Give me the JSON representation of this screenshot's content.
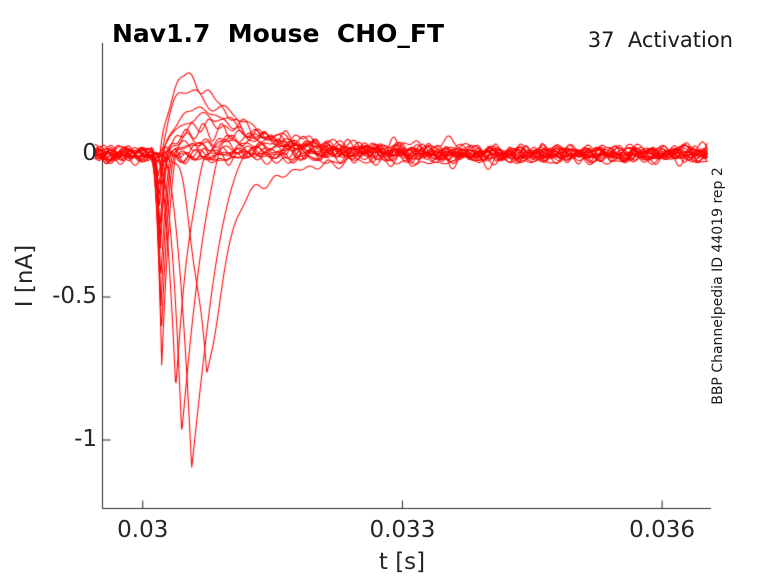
{
  "figure": {
    "title": "Nav1.7  Mouse  CHO_FT",
    "annotation": "37  Activation",
    "side_label": "BBP Channelpedia ID 44019 rep 2",
    "xlabel": "t [s]",
    "ylabel": "I [nA]"
  },
  "colors": {
    "trace": "#ff0000",
    "axis": "#262626",
    "title_text": "#000000",
    "background": "#ffffff"
  },
  "chart_data": {
    "type": "line",
    "title": "Nav1.7  Mouse  CHO_FT",
    "subtitle": "37  Activation",
    "watermark": "BBP Channelpedia ID 44019 rep 2",
    "xlabel": "t [s]",
    "ylabel": "I [nA]",
    "xlim": [
      0.029535,
      0.036565
    ],
    "ylim": [
      -1.2395,
      0.3881
    ],
    "xticks": [
      {
        "value": 0.03,
        "label": "0.03"
      },
      {
        "value": 0.033,
        "label": "0.033"
      },
      {
        "value": 0.036,
        "label": "0.036"
      }
    ],
    "yticks": [
      {
        "value": 0,
        "label": "0"
      },
      {
        "value": -0.5,
        "label": "-0.5"
      },
      {
        "value": -1,
        "label": "-1"
      }
    ],
    "grid": false,
    "legend": "none",
    "trace_color": "#ff0000",
    "n_sweeps": 20,
    "noise_amp_nA": 0.016,
    "dc_jitter_nA": 0.008,
    "t_start_s": 0.029445,
    "t_end_s": 0.03653,
    "sweeps": [
      {
        "peak": 0,
        "t_on": 0,
        "t_peak": 0,
        "t_end": 0,
        "over": 0,
        "over_tau": 0.001,
        "tail": 0,
        "tail_tau": 0.001
      },
      {
        "peak": 0,
        "t_on": 0,
        "t_peak": 0,
        "t_end": 0,
        "over": 0,
        "over_tau": 0.001,
        "tail": 0,
        "tail_tau": 0.001
      },
      {
        "peak": 0,
        "t_on": 0,
        "t_peak": 0,
        "t_end": 0,
        "over": 0,
        "over_tau": 0.001,
        "tail": 0,
        "tail_tau": 0.001
      },
      {
        "peak": -0.035,
        "t_on": 0.0301154,
        "t_peak": 0.0301731,
        "t_end": 0.0302365,
        "over": 0.255,
        "over_tau": 0.00032,
        "tail": 0,
        "tail_tau": 0.001
      },
      {
        "peak": -0.065,
        "t_on": 0.0301131,
        "t_peak": 0.0301788,
        "t_end": 0.0302446,
        "over": 0.205,
        "over_tau": 0.00036,
        "tail": 0,
        "tail_tau": 0.001
      },
      {
        "peak": -0.105,
        "t_on": 0.0301108,
        "t_peak": 0.0301846,
        "t_end": 0.0302538,
        "over": 0.165,
        "over_tau": 0.00041,
        "tail": 0,
        "tail_tau": 0.001
      },
      {
        "peak": -0.15,
        "t_on": 0.0301085,
        "t_peak": 0.0301892,
        "t_end": 0.0302631,
        "over": 0.13,
        "over_tau": 0.00046,
        "tail": 0,
        "tail_tau": 0.001
      },
      {
        "peak": -0.2,
        "t_on": 0.0301062,
        "t_peak": 0.0301938,
        "t_end": 0.0302723,
        "over": 0.1,
        "over_tau": 0.00052,
        "tail": 0,
        "tail_tau": 0.001
      },
      {
        "peak": -0.25,
        "t_on": 0.0301038,
        "t_peak": 0.0301973,
        "t_end": 0.0302827,
        "over": 0.077,
        "over_tau": 0.00059,
        "tail": 0,
        "tail_tau": 0.001
      },
      {
        "peak": -0.305,
        "t_on": 0.0301015,
        "t_peak": 0.0302008,
        "t_end": 0.0302942,
        "over": 0.057,
        "over_tau": 0.00066,
        "tail": 0,
        "tail_tau": 0.001
      },
      {
        "peak": -0.365,
        "t_on": 0.0300992,
        "t_peak": 0.0302042,
        "t_end": 0.0303081,
        "over": 0.042,
        "over_tau": 0.00074,
        "tail": 0,
        "tail_tau": 0.001
      },
      {
        "peak": -0.435,
        "t_on": 0.0300969,
        "t_peak": 0.0302077,
        "t_end": 0.0303231,
        "over": 0.029,
        "over_tau": 0.00083,
        "tail": 0,
        "tail_tau": 0.001
      },
      {
        "peak": -0.52,
        "t_on": 0.0300946,
        "t_peak": 0.0302112,
        "t_end": 0.0303438,
        "over": 0.019,
        "over_tau": 0.00093,
        "tail": 0,
        "tail_tau": 0.001
      },
      {
        "peak": -0.62,
        "t_on": 0.0300923,
        "t_peak": 0.0302146,
        "t_end": 0.0303669,
        "over": 0.012,
        "over_tau": 0.00104,
        "tail": 0,
        "tail_tau": 0.001
      },
      {
        "peak": -0.75,
        "t_on": 0.03009,
        "t_peak": 0.0302192,
        "t_end": 0.030398,
        "over": 0.007,
        "over_tau": 0.00115,
        "tail": 0,
        "tail_tau": 0.001
      },
      {
        "peak": -0.81,
        "t_on": 0.0301385,
        "t_peak": 0.0303808,
        "t_end": 0.0307269,
        "over": 0.02,
        "over_tau": 0.0009,
        "tail": 0,
        "tail_tau": 0.001
      },
      {
        "peak": -0.97,
        "t_on": 0.0301615,
        "t_peak": 0.03045,
        "t_end": 0.0309346,
        "over": 0.014,
        "over_tau": 0.001,
        "tail": 0,
        "tail_tau": 0.001
      },
      {
        "peak": -1.1,
        "t_on": 0.0301962,
        "t_peak": 0.0305654,
        "t_end": 0.0311885,
        "over": 0.009,
        "over_tau": 0.0012,
        "tail": 0,
        "tail_tau": 0.001
      },
      {
        "peak": -0.79,
        "t_on": 0.0302654,
        "t_peak": 0.0307385,
        "t_end": 0.0312577,
        "over": 0,
        "over_tau": 0.001,
        "tail": -0.115,
        "tail_tau": 0.00085
      },
      {
        "peak": 0,
        "t_on": 0,
        "t_peak": 0,
        "t_end": 0,
        "over": 0,
        "over_tau": 0.001,
        "tail": 0,
        "tail_tau": 0.001
      }
    ]
  }
}
